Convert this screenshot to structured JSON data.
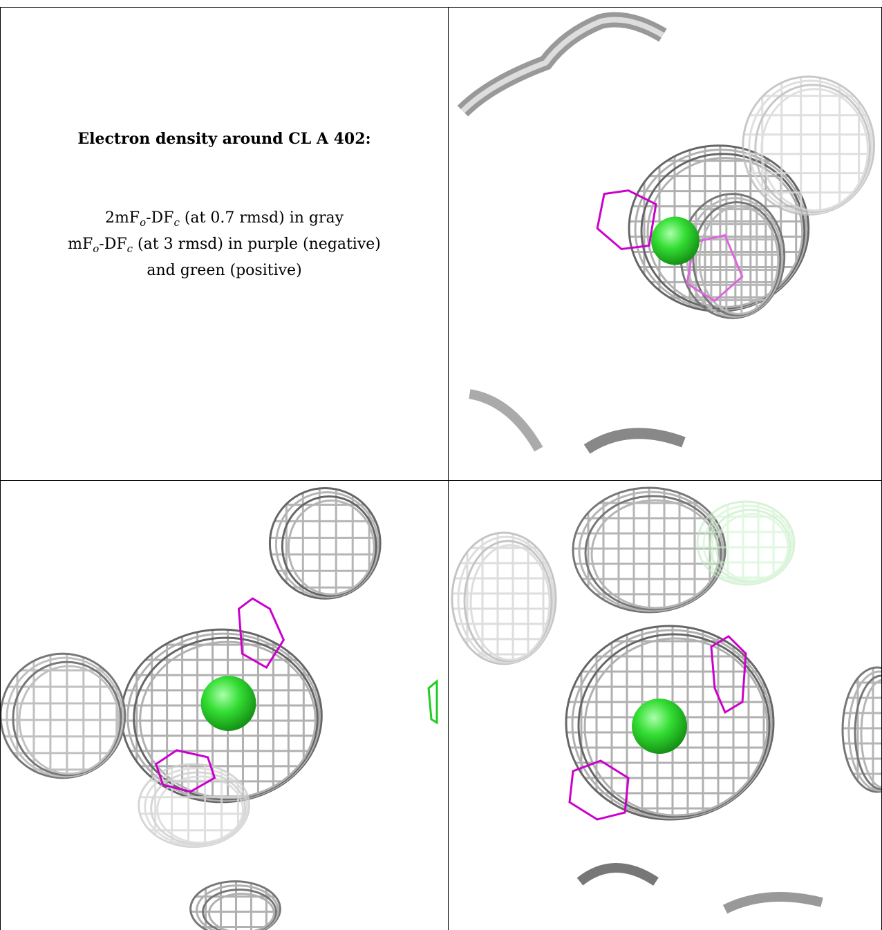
{
  "caption": {
    "title": "Electron density around CL A 402:",
    "map1_prefix": "2mF",
    "map1_sub_o": "o",
    "map1_mid": "-DF",
    "map1_sub_c": "c",
    "map1_suffix": " (at 0.7 rmsd) in gray",
    "map2_prefix": "mF",
    "map2_sub_o": "o",
    "map2_mid": "-DF",
    "map2_sub_c": "c",
    "map2_suffix": " (at 3 rmsd) in purple (negative)",
    "map2_line2": "and green (positive)"
  },
  "colors": {
    "gray_mesh": "#a8a8a8",
    "dark_mesh": "#555555",
    "light_mesh": "#d8d8d8",
    "negative": "#cc00cc",
    "positive": "#22cc22",
    "atom": "#33dd33"
  }
}
